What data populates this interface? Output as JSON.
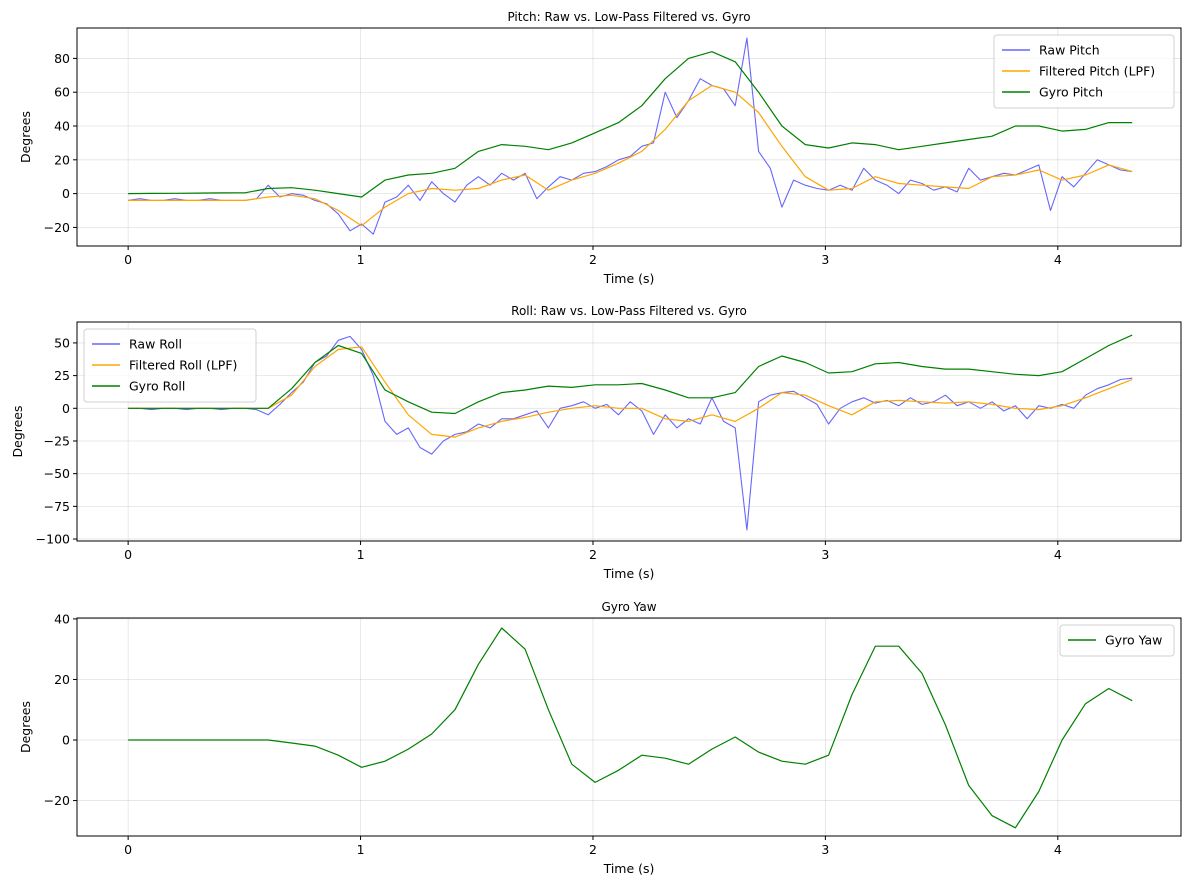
{
  "chart_data": [
    {
      "type": "line",
      "title": "Pitch: Raw vs. Low-Pass Filtered vs. Gyro",
      "xlabel": "Time (s)",
      "ylabel": "Degrees",
      "xlim": [
        -0.22,
        4.53
      ],
      "ylim": [
        -31,
        98
      ],
      "xticks": [
        0,
        1,
        2,
        3,
        4
      ],
      "yticks": [
        -20,
        0,
        20,
        40,
        60,
        80
      ],
      "ytick_labels": [
        "−20",
        "0",
        "20",
        "40",
        "60",
        "80"
      ],
      "grid": true,
      "legend_position": "top-right",
      "series": [
        {
          "name": "Raw Pitch",
          "color": "#6666ff",
          "t_end": 4.32,
          "values": [
            -4,
            -3,
            -4,
            -4,
            -3,
            -4,
            -4,
            -3,
            -4,
            -4,
            -4,
            -3,
            5,
            -2,
            0,
            -1,
            -4,
            -6,
            -12,
            -22,
            -18,
            -24,
            -5,
            -2,
            5,
            -4,
            7,
            0,
            -5,
            5,
            10,
            5,
            12,
            8,
            12,
            -3,
            4,
            10,
            8,
            12,
            13,
            16,
            20,
            22,
            28,
            30,
            60,
            45,
            55,
            68,
            64,
            62,
            52,
            92,
            25,
            15,
            -8,
            8,
            5,
            3,
            2,
            5,
            2,
            15,
            8,
            5,
            0,
            8,
            6,
            2,
            4,
            1,
            15,
            8,
            10,
            12,
            11,
            14,
            17,
            -10,
            10,
            4,
            12,
            20,
            17,
            14,
            13
          ]
        },
        {
          "name": "Filtered Pitch (LPF)",
          "color": "#ffa500",
          "t_end": 4.32,
          "values": [
            -4,
            -4,
            -4,
            -4,
            -4,
            -4,
            -2,
            -1,
            -3,
            -10,
            -19,
            -8,
            0,
            3,
            2,
            3,
            8,
            11,
            2,
            8,
            12,
            18,
            25,
            38,
            55,
            64,
            60,
            48,
            28,
            10,
            2,
            3,
            10,
            6,
            5,
            4,
            3,
            10,
            11,
            14,
            8,
            11,
            17,
            13
          ]
        },
        {
          "name": "Gyro Pitch",
          "color": "#008000",
          "t_end": 4.32,
          "values": [
            0,
            0.1,
            0.2,
            0.3,
            0.4,
            0.5,
            3,
            3.5,
            2,
            0,
            -2,
            8,
            11,
            12,
            15,
            25,
            29,
            28,
            26,
            30,
            36,
            42,
            52,
            68,
            80,
            84,
            78,
            60,
            40,
            29,
            27,
            30,
            29,
            26,
            28,
            30,
            32,
            34,
            40,
            40,
            37,
            38,
            42,
            42
          ]
        }
      ]
    },
    {
      "type": "line",
      "title": "Roll: Raw vs. Low-Pass Filtered vs. Gyro",
      "xlabel": "Time (s)",
      "ylabel": "Degrees",
      "xlim": [
        -0.22,
        4.53
      ],
      "ylim": [
        -101.5,
        66
      ],
      "xticks": [
        0,
        1,
        2,
        3,
        4
      ],
      "yticks": [
        -100,
        -75,
        -50,
        -25,
        0,
        25,
        50
      ],
      "ytick_labels": [
        "−100",
        "−75",
        "−50",
        "−25",
        "0",
        "25",
        "50"
      ],
      "grid": true,
      "legend_position": "top-left",
      "series": [
        {
          "name": "Raw Roll",
          "color": "#6666ff",
          "t_end": 4.32,
          "values": [
            0,
            0,
            -1,
            0,
            0,
            -1,
            0,
            0,
            -1,
            0,
            0,
            -1,
            -5,
            3,
            12,
            20,
            35,
            40,
            52,
            55,
            45,
            25,
            -10,
            -20,
            -15,
            -30,
            -35,
            -25,
            -20,
            -18,
            -12,
            -15,
            -8,
            -8,
            -5,
            -2,
            -15,
            0,
            2,
            5,
            0,
            3,
            -5,
            5,
            -2,
            -20,
            -5,
            -15,
            -8,
            -12,
            8,
            -10,
            -15,
            -93,
            5,
            10,
            12,
            13,
            8,
            3,
            -12,
            0,
            5,
            8,
            4,
            6,
            2,
            8,
            3,
            5,
            10,
            2,
            5,
            0,
            5,
            -2,
            2,
            -8,
            2,
            0,
            3,
            0,
            10,
            15,
            18,
            22,
            23
          ]
        },
        {
          "name": "Filtered Roll (LPF)",
          "color": "#ffa500",
          "t_end": 4.32,
          "values": [
            0,
            0,
            0,
            0,
            0,
            0,
            0,
            10,
            32,
            45,
            47,
            20,
            -5,
            -20,
            -22,
            -15,
            -10,
            -7,
            -3,
            0,
            2,
            0,
            0,
            -8,
            -10,
            -5,
            -10,
            0,
            12,
            10,
            2,
            -5,
            5,
            6,
            5,
            4,
            5,
            3,
            0,
            -1,
            2,
            8,
            15,
            22
          ]
        },
        {
          "name": "Gyro Roll",
          "color": "#008000",
          "t_end": 4.32,
          "values": [
            0,
            0,
            0,
            0,
            0,
            0,
            0,
            15,
            35,
            48,
            42,
            14,
            5,
            -3,
            -4,
            5,
            12,
            14,
            17,
            16,
            18,
            18,
            19,
            14,
            8,
            8,
            12,
            32,
            40,
            35,
            27,
            28,
            34,
            35,
            32,
            30,
            30,
            28,
            26,
            25,
            28,
            38,
            48,
            56
          ]
        }
      ]
    },
    {
      "type": "line",
      "title": "Gyro Yaw",
      "xlabel": "Time (s)",
      "ylabel": "Degrees",
      "xlim": [
        -0.22,
        4.53
      ],
      "ylim": [
        -31.7,
        40.3
      ],
      "xticks": [
        0,
        1,
        2,
        3,
        4
      ],
      "yticks": [
        -20,
        0,
        20,
        40
      ],
      "ytick_labels": [
        "−20",
        "0",
        "20",
        "40"
      ],
      "grid": true,
      "legend_position": "top-right",
      "series": [
        {
          "name": "Gyro Yaw",
          "color": "#008000",
          "t_end": 4.32,
          "values": [
            0,
            0,
            0,
            0,
            0,
            0,
            0,
            -1,
            -2,
            -5,
            -9,
            -7,
            -3,
            2,
            10,
            25,
            37,
            30,
            10,
            -8,
            -14,
            -10,
            -5,
            -6,
            -8,
            -3,
            1,
            -4,
            -7,
            -8,
            -5,
            15,
            31,
            31,
            22,
            5,
            -15,
            -25,
            -29,
            -17,
            0,
            12,
            17,
            13
          ]
        }
      ]
    }
  ]
}
